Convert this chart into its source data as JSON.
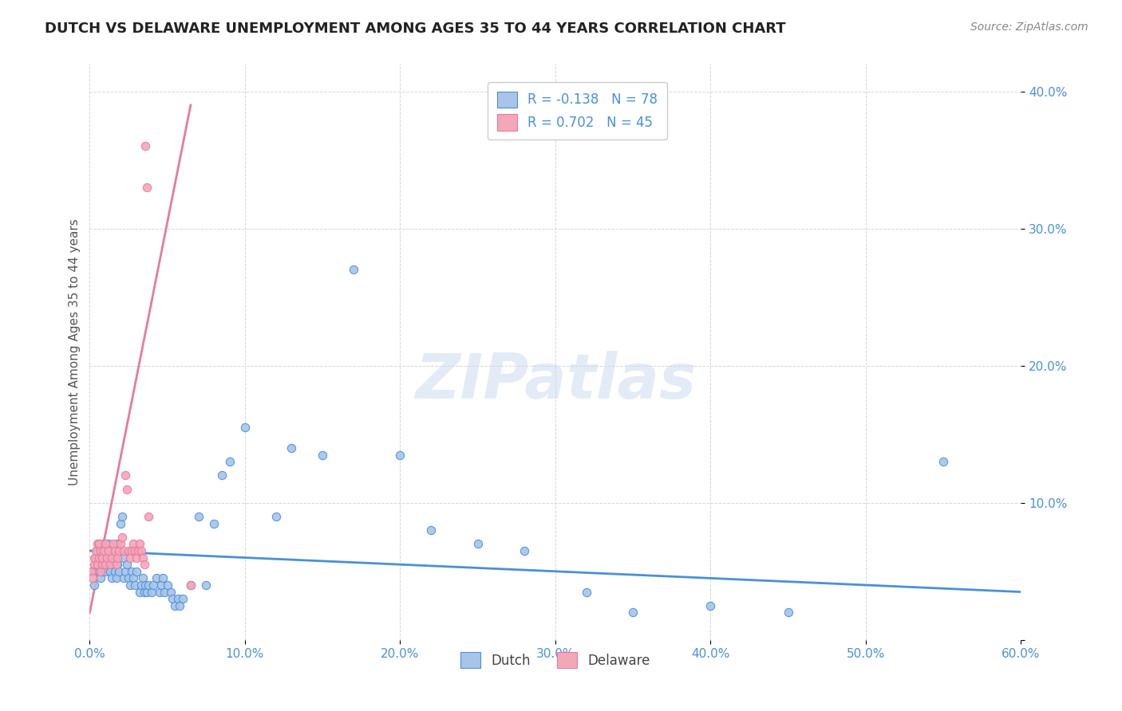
{
  "title": "DUTCH VS DELAWARE UNEMPLOYMENT AMONG AGES 35 TO 44 YEARS CORRELATION CHART",
  "source": "Source: ZipAtlas.com",
  "ylabel": "Unemployment Among Ages 35 to 44 years",
  "xlim": [
    0.0,
    0.6
  ],
  "ylim": [
    0.0,
    0.42
  ],
  "xticks": [
    0.0,
    0.1,
    0.2,
    0.3,
    0.4,
    0.5,
    0.6
  ],
  "xticklabels": [
    "0.0%",
    "10.0%",
    "20.0%",
    "30.0%",
    "40.0%",
    "50.0%",
    "60.0%"
  ],
  "yticks": [
    0.0,
    0.1,
    0.2,
    0.3,
    0.4
  ],
  "yticklabels": [
    "",
    "10.0%",
    "20.0%",
    "30.0%",
    "40.0%"
  ],
  "dutch_color": "#a8c4e8",
  "delaware_color": "#f4a7b9",
  "dutch_edge_color": "#4a90d9",
  "delaware_edge_color": "#e87a9a",
  "dutch_line_color": "#4a90d9",
  "delaware_line_color": "#e87a9a",
  "legend_dutch_R": "-0.138",
  "legend_dutch_N": "78",
  "legend_delaware_R": "0.702",
  "legend_delaware_N": "45",
  "watermark": "ZIPatlas",
  "dutch_x": [
    0.002,
    0.003,
    0.004,
    0.005,
    0.005,
    0.006,
    0.007,
    0.008,
    0.008,
    0.009,
    0.01,
    0.01,
    0.011,
    0.012,
    0.013,
    0.013,
    0.014,
    0.015,
    0.016,
    0.016,
    0.017,
    0.018,
    0.018,
    0.019,
    0.019,
    0.02,
    0.021,
    0.022,
    0.022,
    0.023,
    0.024,
    0.025,
    0.026,
    0.027,
    0.028,
    0.029,
    0.03,
    0.032,
    0.033,
    0.034,
    0.035,
    0.036,
    0.037,
    0.038,
    0.04,
    0.041,
    0.043,
    0.045,
    0.046,
    0.047,
    0.048,
    0.05,
    0.052,
    0.053,
    0.055,
    0.057,
    0.058,
    0.06,
    0.065,
    0.07,
    0.075,
    0.08,
    0.085,
    0.09,
    0.1,
    0.12,
    0.13,
    0.15,
    0.17,
    0.2,
    0.22,
    0.25,
    0.28,
    0.32,
    0.35,
    0.4,
    0.45,
    0.55
  ],
  "dutch_y": [
    0.05,
    0.04,
    0.06,
    0.055,
    0.065,
    0.07,
    0.045,
    0.05,
    0.06,
    0.07,
    0.055,
    0.05,
    0.065,
    0.07,
    0.05,
    0.06,
    0.045,
    0.055,
    0.05,
    0.06,
    0.045,
    0.055,
    0.07,
    0.065,
    0.05,
    0.085,
    0.09,
    0.06,
    0.045,
    0.05,
    0.055,
    0.045,
    0.04,
    0.05,
    0.045,
    0.04,
    0.05,
    0.035,
    0.04,
    0.045,
    0.035,
    0.04,
    0.035,
    0.04,
    0.035,
    0.04,
    0.045,
    0.035,
    0.04,
    0.045,
    0.035,
    0.04,
    0.035,
    0.03,
    0.025,
    0.03,
    0.025,
    0.03,
    0.04,
    0.09,
    0.04,
    0.085,
    0.12,
    0.13,
    0.155,
    0.09,
    0.14,
    0.135,
    0.27,
    0.135,
    0.08,
    0.07,
    0.065,
    0.035,
    0.02,
    0.025,
    0.02,
    0.13
  ],
  "delaware_x": [
    0.001,
    0.002,
    0.003,
    0.003,
    0.004,
    0.005,
    0.005,
    0.006,
    0.006,
    0.007,
    0.007,
    0.008,
    0.008,
    0.009,
    0.01,
    0.01,
    0.011,
    0.012,
    0.013,
    0.014,
    0.015,
    0.016,
    0.017,
    0.018,
    0.019,
    0.02,
    0.021,
    0.022,
    0.023,
    0.024,
    0.025,
    0.026,
    0.027,
    0.028,
    0.029,
    0.03,
    0.031,
    0.032,
    0.033,
    0.034,
    0.035,
    0.036,
    0.037,
    0.038,
    0.065
  ],
  "delaware_y": [
    0.05,
    0.045,
    0.055,
    0.06,
    0.065,
    0.07,
    0.055,
    0.06,
    0.07,
    0.065,
    0.05,
    0.055,
    0.06,
    0.065,
    0.07,
    0.055,
    0.06,
    0.065,
    0.055,
    0.06,
    0.07,
    0.065,
    0.055,
    0.06,
    0.065,
    0.07,
    0.075,
    0.065,
    0.12,
    0.11,
    0.065,
    0.06,
    0.065,
    0.07,
    0.065,
    0.06,
    0.065,
    0.07,
    0.065,
    0.06,
    0.055,
    0.36,
    0.33,
    0.09,
    0.04
  ],
  "dutch_trend_x": [
    0.0,
    0.6
  ],
  "dutch_trend_y": [
    0.065,
    0.035
  ],
  "delaware_trend_x": [
    0.0,
    0.065
  ],
  "delaware_trend_y": [
    0.02,
    0.39
  ]
}
